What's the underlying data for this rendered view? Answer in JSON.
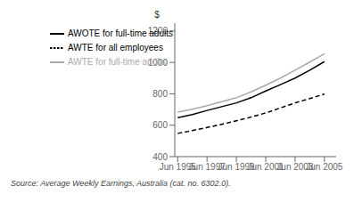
{
  "chart_data": {
    "type": "line",
    "ylabel": "$",
    "source": "Source: Average Weekly Earnings, Australia (cat. no. 6302.0).",
    "x": [
      1995,
      1996,
      1997,
      1998,
      1999,
      2000,
      2001,
      2002,
      2003,
      2004,
      2005
    ],
    "series": [
      {
        "name": "AWOTE for full-time adults",
        "color": "#000000",
        "line_style": "solid",
        "values": [
          648,
          668,
          694,
          718,
          742,
          775,
          818,
          858,
          900,
          950,
          1005
        ]
      },
      {
        "name": "AWTE for full-time adults",
        "color": "#aaaaaa",
        "line_style": "solid",
        "values": [
          683,
          702,
          725,
          750,
          775,
          812,
          855,
          900,
          950,
          1002,
          1055
        ]
      },
      {
        "name": "AWTE for all employees",
        "color": "#000000",
        "line_style": "dashed",
        "values": [
          548,
          566,
          585,
          606,
          628,
          652,
          678,
          710,
          742,
          770,
          798
        ]
      }
    ],
    "xlim": [
      1994.8,
      2005.8
    ],
    "xticks": [
      {
        "value": 1995,
        "label": "Jun 1995"
      },
      {
        "value": 1997,
        "label": "Jun 1997"
      },
      {
        "value": 1999,
        "label": "Jun 1999"
      },
      {
        "value": 2001,
        "label": "Jun 2001"
      },
      {
        "value": 2003,
        "label": "Jun 2003"
      },
      {
        "value": 2005,
        "label": "Jun 2005"
      }
    ],
    "ylim": [
      400,
      1250
    ],
    "yticks": [
      400,
      600,
      800,
      1000,
      1200
    ],
    "legend": "upper left",
    "grid": false
  }
}
